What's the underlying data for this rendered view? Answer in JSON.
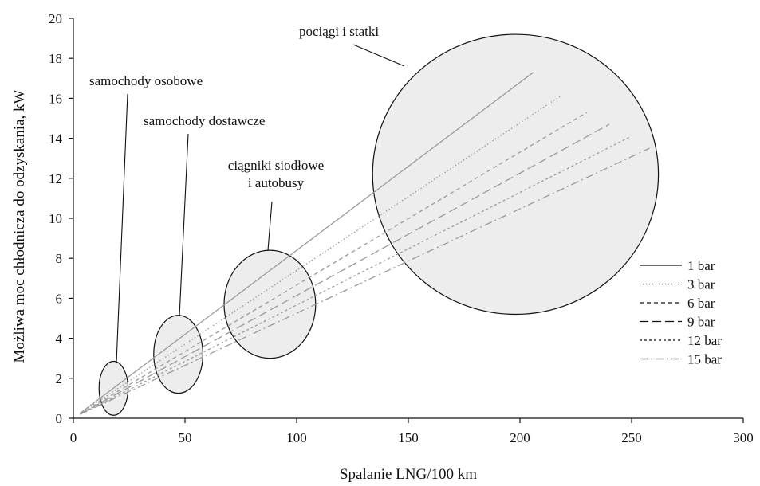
{
  "chart_data": {
    "type": "line",
    "xlabel": "Spalanie  LNG/100 km",
    "ylabel": "Możliwa  moc chłodnicza  do odzyskania,  kW",
    "xlim": [
      0,
      300
    ],
    "ylim": [
      0,
      20
    ],
    "xticks": [
      0,
      50,
      100,
      150,
      200,
      250,
      300
    ],
    "yticks": [
      0,
      2,
      4,
      6,
      8,
      10,
      12,
      14,
      16,
      18,
      20
    ],
    "grid": false,
    "legend_position": "bottom-right",
    "series": [
      {
        "name": "1 bar",
        "dash": "solid",
        "color": "#9a9a9a",
        "x": [
          3,
          206
        ],
        "y": [
          0.25,
          17.3
        ]
      },
      {
        "name": "3 bar",
        "dash": "dotted",
        "color": "#9a9a9a",
        "x": [
          3,
          218
        ],
        "y": [
          0.24,
          16.1
        ]
      },
      {
        "name": "6 bar",
        "dash": "dashed",
        "color": "#9a9a9a",
        "x": [
          3,
          230
        ],
        "y": [
          0.22,
          15.3
        ]
      },
      {
        "name": "9 bar",
        "dash": "long-dash",
        "color": "#9a9a9a",
        "x": [
          3,
          240
        ],
        "y": [
          0.21,
          14.7
        ]
      },
      {
        "name": "12 bar",
        "dash": "short-dash",
        "color": "#9a9a9a",
        "x": [
          3,
          249
        ],
        "y": [
          0.2,
          14.05
        ]
      },
      {
        "name": "15 bar",
        "dash": "dash-dot",
        "color": "#9a9a9a",
        "x": [
          3,
          258
        ],
        "y": [
          0.19,
          13.5
        ]
      }
    ],
    "regions": [
      {
        "label_lines": [
          "samochody osobowe"
        ],
        "cx": 18,
        "cy": 1.5,
        "rx": 6.5,
        "ry": 1.35
      },
      {
        "label_lines": [
          "samochody dostawcze"
        ],
        "cx": 47,
        "cy": 3.2,
        "rx": 11,
        "ry": 1.95
      },
      {
        "label_lines": [
          "ciągniki  siodłowe",
          "i  autobusy"
        ],
        "cx": 88,
        "cy": 5.7,
        "rx": 20.5,
        "ry": 2.7
      },
      {
        "label_lines": [
          "pociągi i statki"
        ],
        "cx": 198,
        "cy": 12.2,
        "rx": 64,
        "ry": 7.0
      }
    ],
    "colors": {
      "axis": "#111111",
      "ellipse_fill": "#ededed",
      "ellipse_stroke": "#111111",
      "legend_line": "#111111"
    }
  }
}
